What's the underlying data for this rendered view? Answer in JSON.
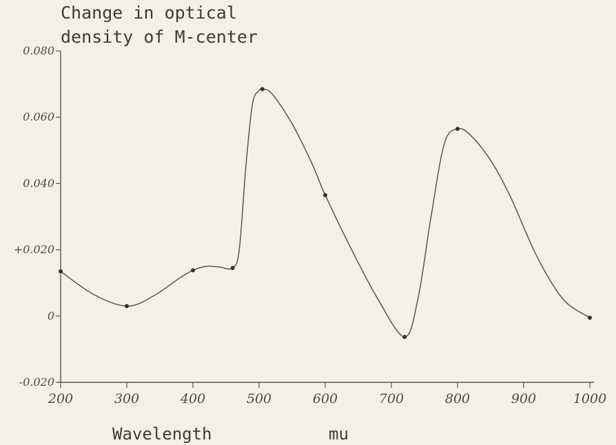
{
  "chart_data": {
    "type": "line",
    "title_lines": [
      "Change in optical",
      "density of M-center"
    ],
    "xlabel": "Wavelength",
    "xunit": "mu",
    "xlim": [
      200,
      1000
    ],
    "ylim": [
      -0.02,
      0.08
    ],
    "x_ticks": [
      200,
      300,
      400,
      500,
      600,
      700,
      800,
      900,
      1000
    ],
    "x_tick_labels": [
      "200",
      "300",
      "400",
      "500",
      "600",
      "700",
      "800",
      "900",
      "1000"
    ],
    "y_ticks": [
      -0.02,
      0.0,
      0.02,
      0.04,
      0.06,
      0.08
    ],
    "y_tick_labels": [
      "-0.020",
      "0",
      "+0.020",
      "0.040",
      "0.060",
      "0.080"
    ],
    "grid": false,
    "series": [
      {
        "x": [
          200,
          300,
          400,
          460,
          505,
          600,
          720,
          800,
          1000
        ],
        "y": [
          0.0135,
          0.003,
          0.0138,
          0.0145,
          0.0685,
          0.0365,
          -0.0063,
          0.0565,
          -0.0005
        ]
      }
    ],
    "curve": {
      "x": [
        200,
        250,
        300,
        340,
        380,
        400,
        420,
        440,
        460,
        470,
        480,
        490,
        500,
        505,
        520,
        550,
        580,
        600,
        640,
        680,
        720,
        740,
        760,
        780,
        800,
        820,
        850,
        880,
        920,
        960,
        1000
      ],
      "y": [
        0.0135,
        0.0065,
        0.003,
        0.006,
        0.0115,
        0.0138,
        0.015,
        0.0148,
        0.0145,
        0.02,
        0.045,
        0.064,
        0.068,
        0.0685,
        0.067,
        0.058,
        0.046,
        0.0365,
        0.02,
        0.005,
        -0.0063,
        0.005,
        0.03,
        0.052,
        0.0565,
        0.0545,
        0.047,
        0.036,
        0.018,
        0.005,
        -0.0005
      ]
    }
  }
}
